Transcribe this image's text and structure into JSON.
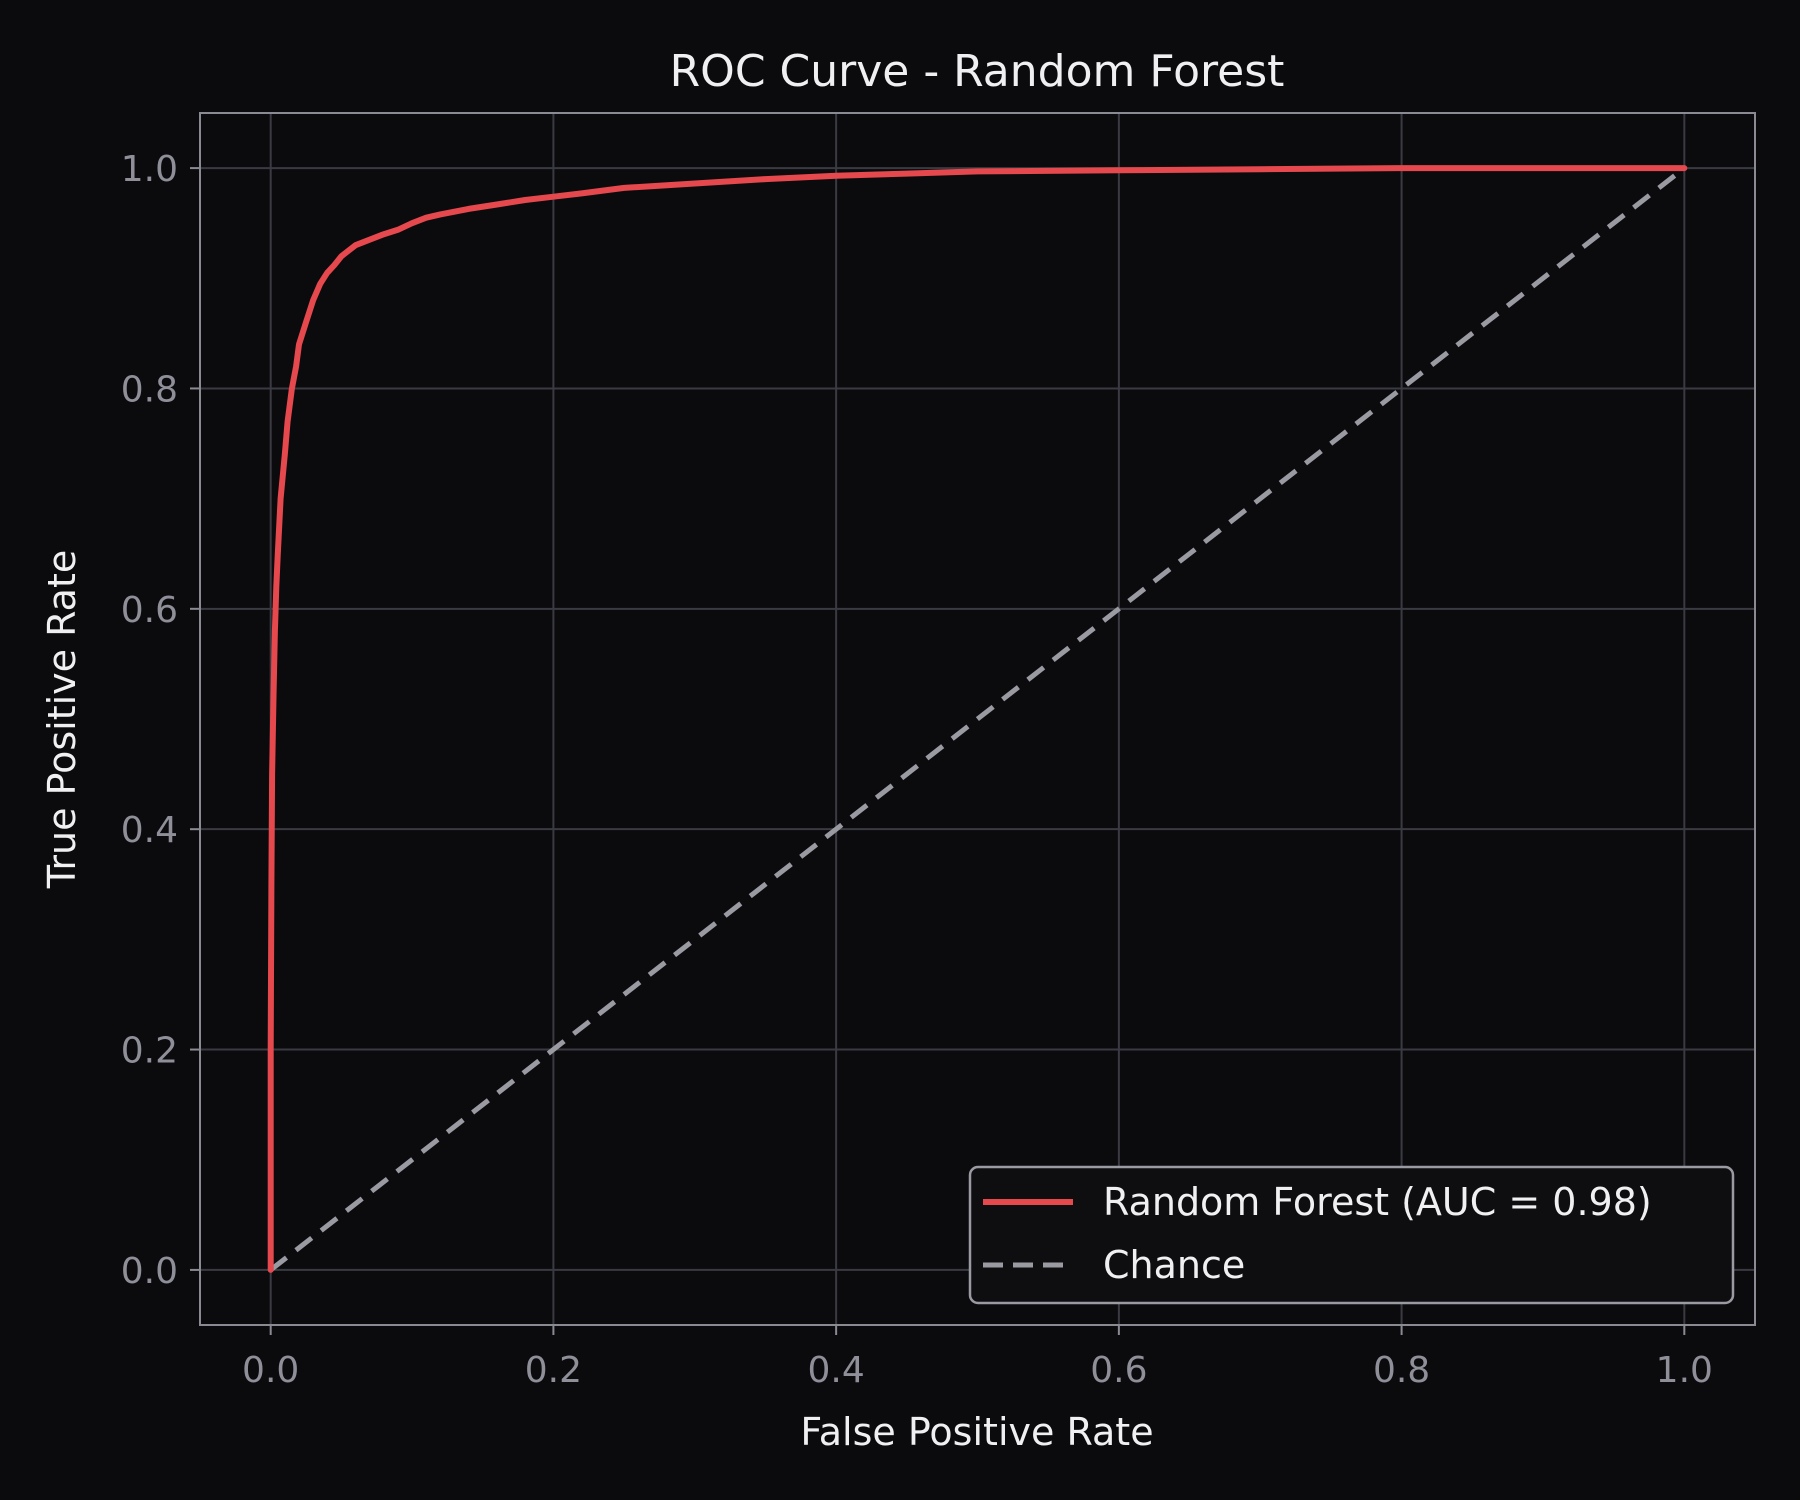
{
  "chart_data": {
    "type": "line",
    "title": "ROC Curve - Random Forest",
    "xlabel": "False Positive Rate",
    "ylabel": "True Positive Rate",
    "xlim": [
      -0.05,
      1.05
    ],
    "ylim": [
      -0.05,
      1.05
    ],
    "xticks": [
      0.0,
      0.2,
      0.4,
      0.6,
      0.8,
      1.0
    ],
    "yticks": [
      0.0,
      0.2,
      0.4,
      0.6,
      0.8,
      1.0
    ],
    "tick_labels": [
      "0.0",
      "0.2",
      "0.4",
      "0.6",
      "0.8",
      "1.0"
    ],
    "grid": true,
    "legend_position": "bottom-right",
    "series": [
      {
        "name": "Random Forest (AUC =  0.98)",
        "color": "#e5484d",
        "style": "solid",
        "x": [
          0.0,
          0.0,
          0.0005,
          0.001,
          0.002,
          0.003,
          0.004,
          0.005,
          0.007,
          0.01,
          0.012,
          0.015,
          0.018,
          0.02,
          0.025,
          0.03,
          0.035,
          0.04,
          0.045,
          0.05,
          0.06,
          0.07,
          0.08,
          0.09,
          0.1,
          0.11,
          0.12,
          0.14,
          0.16,
          0.18,
          0.2,
          0.22,
          0.25,
          0.3,
          0.35,
          0.4,
          0.45,
          0.5,
          0.6,
          0.7,
          0.8,
          0.9,
          1.0
        ],
        "y": [
          0.0,
          0.2,
          0.35,
          0.45,
          0.52,
          0.58,
          0.62,
          0.65,
          0.7,
          0.74,
          0.77,
          0.8,
          0.82,
          0.84,
          0.86,
          0.88,
          0.895,
          0.905,
          0.912,
          0.92,
          0.93,
          0.935,
          0.94,
          0.944,
          0.95,
          0.955,
          0.958,
          0.963,
          0.967,
          0.971,
          0.974,
          0.977,
          0.982,
          0.986,
          0.99,
          0.993,
          0.995,
          0.997,
          0.998,
          0.999,
          1.0,
          1.0,
          1.0
        ]
      },
      {
        "name": "Chance",
        "color": "#9a9aa3",
        "style": "dashed",
        "x": [
          0.0,
          1.0
        ],
        "y": [
          0.0,
          1.0
        ]
      }
    ]
  }
}
